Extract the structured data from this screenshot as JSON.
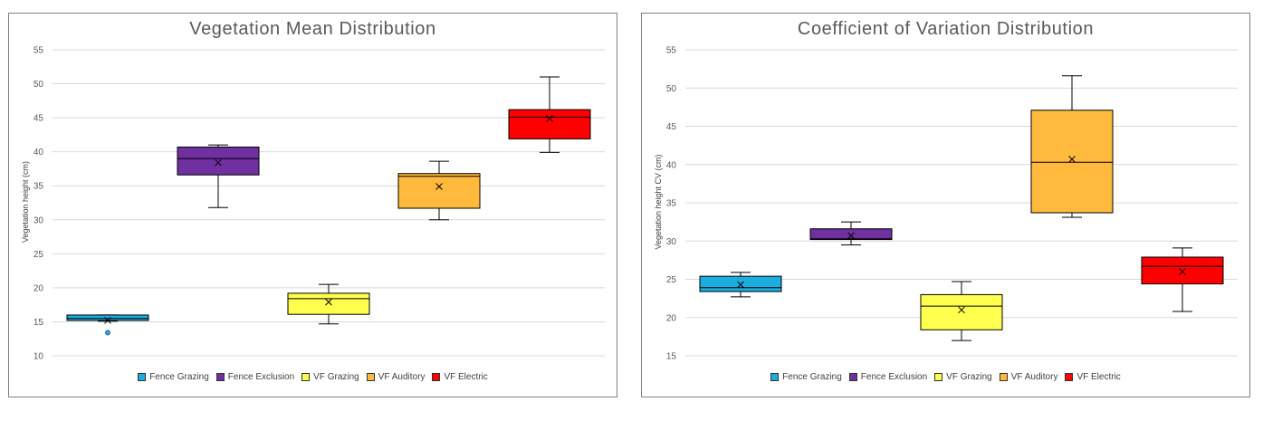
{
  "chart_data": [
    {
      "type": "box",
      "title": "Vegetation Mean Distribution",
      "ylabel": "Vegetation height (cm)",
      "xlabel": "",
      "ylim": [
        10,
        55
      ],
      "yticks": [
        10,
        15,
        20,
        25,
        30,
        35,
        40,
        45,
        50,
        55
      ],
      "grid": true,
      "legend_position": "bottom",
      "series": [
        {
          "name": "Fence Grazing",
          "color": "#1BADE0",
          "min": 15.1,
          "q1": 15.2,
          "median": 15.5,
          "q3": 16.0,
          "max": 16.0,
          "mean": 15.2,
          "outliers": [
            13.4
          ]
        },
        {
          "name": "Fence Exclusion",
          "color": "#7030A0",
          "min": 31.8,
          "q1": 36.6,
          "median": 39.0,
          "q3": 40.7,
          "max": 41.0,
          "mean": 38.4,
          "outliers": []
        },
        {
          "name": "VF Grazing",
          "color": "#FFFF4D",
          "min": 14.7,
          "q1": 16.1,
          "median": 18.4,
          "q3": 19.2,
          "max": 20.5,
          "mean": 17.9,
          "outliers": []
        },
        {
          "name": "VF Auditory",
          "color": "#FFB93C",
          "min": 30.0,
          "q1": 31.7,
          "median": 36.4,
          "q3": 36.8,
          "max": 38.6,
          "mean": 34.9,
          "outliers": []
        },
        {
          "name": "VF Electric",
          "color": "#FF0000",
          "min": 39.9,
          "q1": 41.9,
          "median": 45.1,
          "q3": 46.2,
          "max": 51.0,
          "mean": 44.9,
          "outliers": []
        }
      ]
    },
    {
      "type": "box",
      "title": "Coefficient of Variation Distribution",
      "ylabel": "Vegetation height CV (cm)",
      "xlabel": "",
      "ylim": [
        15,
        55
      ],
      "yticks": [
        15,
        20,
        25,
        30,
        35,
        40,
        45,
        50,
        55
      ],
      "grid": true,
      "legend_position": "bottom",
      "series": [
        {
          "name": "Fence Grazing",
          "color": "#1BADE0",
          "min": 22.7,
          "q1": 23.4,
          "median": 23.9,
          "q3": 25.4,
          "max": 25.9,
          "mean": 24.3,
          "outliers": []
        },
        {
          "name": "Fence Exclusion",
          "color": "#7030A0",
          "min": 29.5,
          "q1": 30.2,
          "median": 30.3,
          "q3": 31.6,
          "max": 32.5,
          "mean": 30.7,
          "outliers": []
        },
        {
          "name": "VF Grazing",
          "color": "#FFFF4D",
          "min": 17.0,
          "q1": 18.4,
          "median": 21.5,
          "q3": 23.0,
          "max": 24.7,
          "mean": 21.0,
          "outliers": []
        },
        {
          "name": "VF Auditory",
          "color": "#FFB93C",
          "min": 33.1,
          "q1": 33.7,
          "median": 40.3,
          "q3": 47.1,
          "max": 51.6,
          "mean": 40.7,
          "outliers": []
        },
        {
          "name": "VF Electric",
          "color": "#FF0000",
          "min": 20.8,
          "q1": 24.4,
          "median": 26.7,
          "q3": 27.9,
          "max": 29.1,
          "mean": 26.0,
          "outliers": []
        }
      ]
    }
  ]
}
